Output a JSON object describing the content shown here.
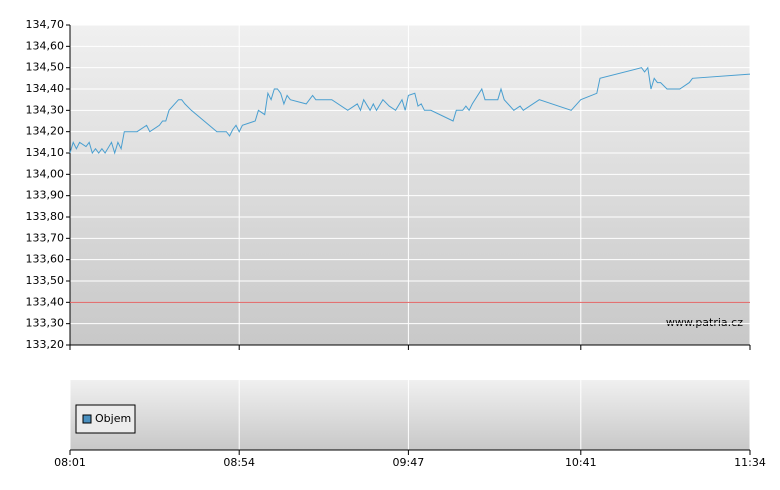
{
  "chart_data": [
    {
      "type": "line",
      "color": "#4a9fd0",
      "x": [
        "08:01",
        "08:02",
        "08:03",
        "08:04",
        "08:06",
        "08:07",
        "08:08",
        "08:09",
        "08:10",
        "08:11",
        "08:12",
        "08:14",
        "08:15",
        "08:16",
        "08:17",
        "08:18",
        "08:22",
        "08:25",
        "08:26",
        "08:29",
        "08:30",
        "08:31",
        "08:32",
        "08:35",
        "08:36",
        "08:37",
        "08:39",
        "08:43",
        "08:47",
        "08:50",
        "08:51",
        "08:52",
        "08:53",
        "08:54",
        "08:55",
        "08:59",
        "09:00",
        "09:02",
        "09:03",
        "09:04",
        "09:05",
        "09:06",
        "09:07",
        "09:08",
        "09:09",
        "09:10",
        "09:15",
        "09:17",
        "09:18",
        "09:23",
        "09:28",
        "09:31",
        "09:32",
        "09:33",
        "09:35",
        "09:36",
        "09:37",
        "09:39",
        "09:41",
        "09:43",
        "09:45",
        "09:46",
        "09:47",
        "09:49",
        "09:50",
        "09:51",
        "09:52",
        "09:54",
        "10:01",
        "10:02",
        "10:04",
        "10:05",
        "10:06",
        "10:07",
        "10:10",
        "10:11",
        "10:15",
        "10:16",
        "10:17",
        "10:20",
        "10:22",
        "10:23",
        "10:28",
        "10:38",
        "10:41",
        "10:46",
        "10:47",
        "11:00",
        "11:01",
        "11:02",
        "11:03",
        "11:04",
        "11:05",
        "11:06",
        "11:08",
        "11:12",
        "11:15",
        "11:16",
        "11:34"
      ],
      "values": [
        134.1,
        134.15,
        134.12,
        134.15,
        134.13,
        134.15,
        134.1,
        134.12,
        134.1,
        134.12,
        134.1,
        134.15,
        134.1,
        134.15,
        134.12,
        134.2,
        134.2,
        134.23,
        134.2,
        134.23,
        134.25,
        134.25,
        134.3,
        134.35,
        134.35,
        134.33,
        134.3,
        134.25,
        134.2,
        134.2,
        134.18,
        134.21,
        134.23,
        134.2,
        134.23,
        134.25,
        134.3,
        134.28,
        134.38,
        134.35,
        134.4,
        134.4,
        134.38,
        134.33,
        134.37,
        134.35,
        134.33,
        134.37,
        134.35,
        134.35,
        134.3,
        134.33,
        134.3,
        134.35,
        134.3,
        134.33,
        134.3,
        134.35,
        134.32,
        134.3,
        134.35,
        134.3,
        134.37,
        134.38,
        134.32,
        134.33,
        134.3,
        134.3,
        134.25,
        134.3,
        134.3,
        134.32,
        134.3,
        134.33,
        134.4,
        134.35,
        134.35,
        134.4,
        134.35,
        134.3,
        134.32,
        134.3,
        134.35,
        134.3,
        134.35,
        134.38,
        134.45,
        134.5,
        134.48,
        134.5,
        134.4,
        134.45,
        134.43,
        134.43,
        134.4,
        134.4,
        134.43,
        134.45,
        134.47
      ],
      "xlim": [
        "08:01",
        "11:34"
      ],
      "xticks": [
        "08:01",
        "08:54",
        "09:47",
        "10:41",
        "11:34"
      ],
      "ylim": [
        133.2,
        134.7
      ],
      "yticks": [
        {
          "value": 133.2,
          "label": "133,20"
        },
        {
          "value": 133.3,
          "label": "133,30"
        },
        {
          "value": 133.4,
          "label": "133,40"
        },
        {
          "value": 133.5,
          "label": "133,50"
        },
        {
          "value": 133.6,
          "label": "133,60"
        },
        {
          "value": 133.7,
          "label": "133,70"
        },
        {
          "value": 133.8,
          "label": "133,80"
        },
        {
          "value": 133.9,
          "label": "133,90"
        },
        {
          "value": 134.0,
          "label": "134,00"
        },
        {
          "value": 134.1,
          "label": "134,10"
        },
        {
          "value": 134.2,
          "label": "134,20"
        },
        {
          "value": 134.3,
          "label": "134,30"
        },
        {
          "value": 134.4,
          "label": "134,40"
        },
        {
          "value": 134.5,
          "label": "134,50"
        },
        {
          "value": 134.6,
          "label": "134,60"
        },
        {
          "value": 134.7,
          "label": "134,70"
        }
      ],
      "reference_line": {
        "value": 133.4,
        "color": "#e06060"
      },
      "annotation": "www.patria.cz",
      "grid": true
    },
    {
      "type": "bar",
      "series": [
        {
          "name": "Objem",
          "color": "#4a90c0",
          "values": []
        }
      ],
      "legend": "lower-left",
      "grid": true
    }
  ]
}
